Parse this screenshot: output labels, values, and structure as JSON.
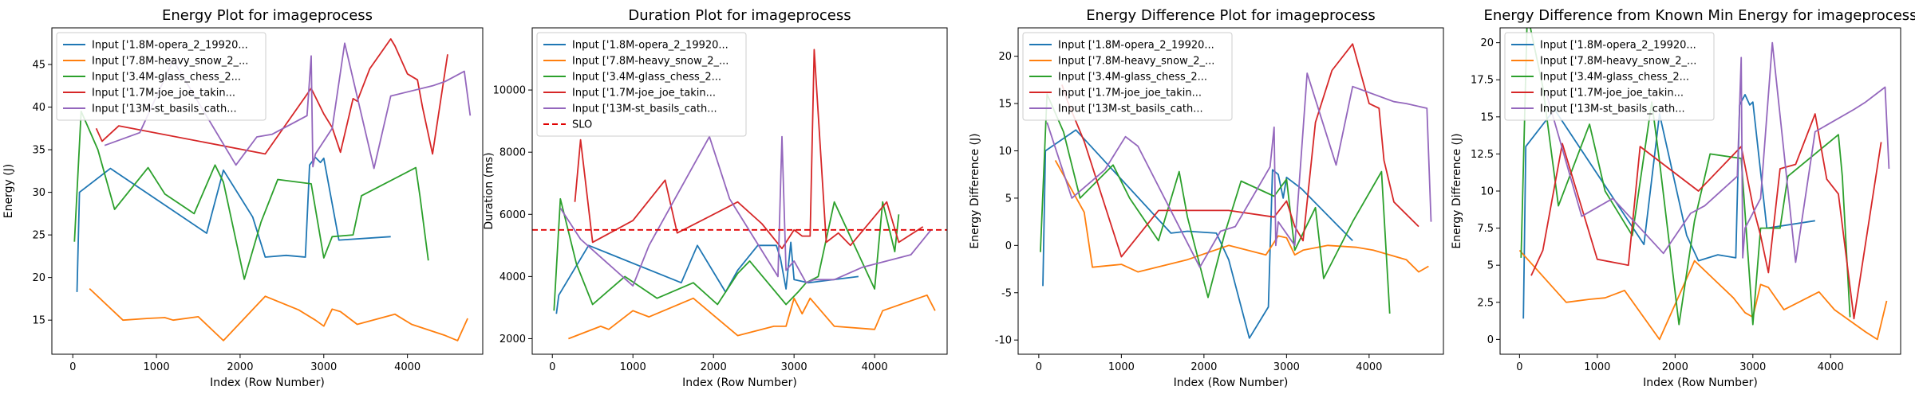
{
  "figure_title": "",
  "colors": [
    "#1f77b4",
    "#ff7f0e",
    "#2ca02c",
    "#d62728",
    "#9467bd"
  ],
  "chart_data": [
    {
      "type": "line",
      "title": "Energy Plot for imageprocess",
      "xlabel": "Index (Row Number)",
      "ylabel": "Energy (J)",
      "xlim": [
        -250,
        4900
      ],
      "ylim": [
        11,
        49.3
      ],
      "xticks": [
        0,
        1000,
        2000,
        3000,
        4000
      ],
      "yticks": [
        15,
        20,
        25,
        30,
        35,
        40,
        45
      ],
      "legend": "upper-left",
      "series": [
        {
          "name": "Input ['1.8M-opera_2_19920...",
          "x": [
            50,
            80,
            450,
            1600,
            1800,
            2150,
            2300,
            2550,
            2780,
            2830,
            2900,
            2960,
            3000,
            3180,
            3800
          ],
          "y": [
            18.3,
            30.0,
            32.8,
            25.2,
            32.6,
            27.1,
            22.4,
            22.6,
            22.4,
            33.2,
            34.1,
            33.5,
            34.0,
            24.4,
            24.8
          ]
        },
        {
          "name": "Input ['7.8M-heavy_snow_2_...",
          "x": [
            200,
            600,
            900,
            1100,
            1200,
            1500,
            1800,
            2300,
            2700,
            2900,
            3000,
            3100,
            3200,
            3400,
            3850,
            4050,
            4450,
            4600,
            4720
          ],
          "y": [
            18.7,
            15.0,
            15.2,
            15.3,
            15.0,
            15.4,
            12.6,
            17.8,
            16.2,
            15.0,
            14.3,
            16.3,
            16.0,
            14.5,
            15.7,
            14.5,
            13.2,
            12.6,
            15.2
          ]
        },
        {
          "name": "Input ['3.4M-glass_chess_2...",
          "x": [
            20,
            100,
            300,
            500,
            900,
            1100,
            1450,
            1700,
            1800,
            2050,
            2250,
            2450,
            2850,
            3000,
            3100,
            3350,
            3450,
            4100,
            4150,
            4250
          ],
          "y": [
            24.2,
            39.5,
            35.0,
            28.0,
            32.9,
            29.8,
            27.5,
            33.2,
            31.2,
            19.8,
            26.5,
            31.5,
            31.0,
            22.3,
            24.8,
            25.0,
            29.6,
            32.9,
            29.5,
            22.0
          ]
        },
        {
          "name": "Input ['1.7M-joe_joe_takin...",
          "x": [
            280,
            350,
            550,
            2300,
            2850,
            3000,
            3100,
            3200,
            3350,
            3400,
            3550,
            3800,
            3850,
            4000,
            4120,
            4180,
            4300,
            4480
          ],
          "y": [
            37.5,
            36.0,
            37.8,
            34.5,
            42.2,
            39.2,
            37.6,
            34.7,
            41.0,
            40.7,
            44.5,
            48.0,
            47.2,
            43.9,
            43.2,
            40.0,
            34.5,
            46.2
          ]
        },
        {
          "name": "Input ['13M-st_basils_cath...",
          "x": [
            380,
            800,
            1200,
            1950,
            2200,
            2380,
            2800,
            2850,
            2870,
            2900,
            3100,
            3250,
            3600,
            3800,
            4300,
            4450,
            4680,
            4750
          ],
          "y": [
            35.5,
            37.0,
            45.5,
            33.2,
            36.5,
            36.8,
            39.0,
            46.0,
            33.0,
            34.5,
            37.5,
            47.5,
            32.8,
            41.3,
            42.5,
            43.0,
            44.2,
            39.0
          ]
        }
      ]
    },
    {
      "type": "line",
      "title": "Duration Plot for imageprocess",
      "xlabel": "Index (Row Number)",
      "ylabel": "Duration (ms)",
      "xlim": [
        -250,
        4900
      ],
      "ylim": [
        1500,
        12000
      ],
      "xticks": [
        0,
        1000,
        2000,
        3000,
        4000
      ],
      "yticks": [
        2000,
        4000,
        6000,
        8000,
        10000
      ],
      "legend": "upper-left",
      "slo": {
        "label": "SLO",
        "value": 5500,
        "color": "#e00000"
      },
      "series": [
        {
          "name": "Input ['1.8M-opera_2_19920...",
          "x": [
            50,
            80,
            450,
            1600,
            1800,
            2150,
            2300,
            2550,
            2780,
            2830,
            2900,
            2960,
            3000,
            3180,
            3800
          ],
          "y": [
            2800,
            3400,
            5000,
            3800,
            5000,
            3500,
            4200,
            5000,
            5000,
            4600,
            3600,
            5100,
            3900,
            3800,
            4000
          ]
        },
        {
          "name": "Input ['7.8M-heavy_snow_2_...",
          "x": [
            200,
            600,
            700,
            1000,
            1200,
            1750,
            2300,
            2750,
            2900,
            3000,
            3100,
            3200,
            3500,
            4000,
            4100,
            4650,
            4750
          ],
          "y": [
            2000,
            2400,
            2300,
            2900,
            2700,
            3300,
            2100,
            2400,
            2400,
            3300,
            2800,
            3300,
            2400,
            2300,
            2900,
            3400,
            2900
          ]
        },
        {
          "name": "Input ['3.4M-glass_chess_2...",
          "x": [
            20,
            100,
            300,
            500,
            900,
            1300,
            1750,
            2050,
            2300,
            2450,
            2900,
            3050,
            3150,
            3300,
            3500,
            4000,
            4100,
            4250,
            4300
          ],
          "y": [
            2900,
            6500,
            4400,
            3100,
            4000,
            3300,
            3800,
            3100,
            4100,
            4500,
            3100,
            3500,
            3800,
            4000,
            6400,
            3600,
            6400,
            4800,
            6000
          ]
        },
        {
          "name": "Input ['1.7M-joe_joe_takin...",
          "x": [
            280,
            350,
            500,
            1000,
            1400,
            1550,
            2300,
            2600,
            2850,
            3000,
            3100,
            3200,
            3250,
            3400,
            3550,
            3700,
            4150,
            4300,
            4600
          ],
          "y": [
            6400,
            8400,
            5100,
            5800,
            7100,
            5400,
            6400,
            5700,
            4900,
            5500,
            5300,
            5300,
            11300,
            5100,
            5400,
            5000,
            6400,
            5100,
            5600
          ]
        },
        {
          "name": "Input ['13M-st_basils_cath...",
          "x": [
            100,
            350,
            1000,
            1200,
            1950,
            2200,
            2800,
            2850,
            2900,
            3000,
            3150,
            3250,
            3500,
            3850,
            4450,
            4700
          ],
          "y": [
            6200,
            5200,
            3700,
            5000,
            8500,
            6500,
            4000,
            8500,
            4200,
            4500,
            3800,
            3900,
            3900,
            4300,
            4700,
            5500
          ]
        }
      ]
    },
    {
      "type": "line",
      "title": "Energy Difference Plot for imageprocess",
      "xlabel": "Index (Row Number)",
      "ylabel": "Energy Difference (J)",
      "xlim": [
        -250,
        4900
      ],
      "ylim": [
        -11.5,
        23
      ],
      "xticks": [
        0,
        1000,
        2000,
        3000,
        4000
      ],
      "yticks": [
        -10,
        -5,
        0,
        5,
        10,
        15,
        20
      ],
      "legend": "upper-left",
      "series": [
        {
          "name": "Input ['1.8M-opera_2_19920...",
          "x": [
            50,
            80,
            450,
            1600,
            1800,
            2150,
            2300,
            2550,
            2780,
            2830,
            2900,
            2960,
            3000,
            3180,
            3800
          ],
          "y": [
            -4.3,
            10.0,
            12.2,
            1.3,
            1.5,
            1.3,
            -1.5,
            -9.8,
            -6.5,
            8.0,
            7.5,
            5.0,
            7.2,
            6.0,
            0.5
          ]
        },
        {
          "name": "Input ['7.8M-heavy_snow_2_...",
          "x": [
            200,
            550,
            650,
            1000,
            1200,
            1800,
            2300,
            2750,
            2900,
            3000,
            3100,
            3200,
            3500,
            3850,
            4050,
            4450,
            4600,
            4720
          ],
          "y": [
            9.0,
            3.5,
            -2.3,
            -2.0,
            -2.8,
            -1.5,
            0.0,
            -1.0,
            1.0,
            0.8,
            -1.0,
            -0.5,
            0.0,
            -0.2,
            -0.5,
            -1.5,
            -2.8,
            -2.2
          ]
        },
        {
          "name": "Input ['3.4M-glass_chess_2...",
          "x": [
            20,
            100,
            300,
            500,
            900,
            1100,
            1450,
            1700,
            1800,
            2050,
            2250,
            2450,
            2850,
            3000,
            3100,
            3350,
            3450,
            3800,
            4150,
            4250
          ],
          "y": [
            -0.7,
            16.0,
            12.0,
            5.0,
            8.5,
            5.0,
            0.5,
            7.8,
            3.0,
            -5.5,
            1.2,
            6.8,
            5.2,
            7.0,
            -0.5,
            4.0,
            -3.5,
            2.5,
            7.8,
            -7.2
          ]
        },
        {
          "name": "Input ['1.7M-joe_joe_takin...",
          "x": [
            280,
            350,
            550,
            1000,
            1450,
            2300,
            2850,
            3000,
            3100,
            3200,
            3350,
            3550,
            3800,
            4000,
            4120,
            4180,
            4300,
            4600
          ],
          "y": [
            17.0,
            15.2,
            11.0,
            -1.2,
            3.7,
            3.7,
            3.0,
            4.7,
            2.0,
            0.5,
            13.0,
            18.5,
            21.3,
            15.0,
            14.5,
            9.0,
            4.6,
            2.0
          ]
        },
        {
          "name": "Input ['13M-st_basils_cath...",
          "x": [
            100,
            400,
            800,
            1050,
            1200,
            1950,
            2200,
            2380,
            2800,
            2850,
            2870,
            2900,
            3100,
            3250,
            3600,
            3800,
            4300,
            4450,
            4700,
            4750
          ],
          "y": [
            13.0,
            5.0,
            8.0,
            11.5,
            10.5,
            -2.3,
            1.5,
            2.0,
            8.3,
            12.5,
            0.0,
            2.5,
            0.0,
            18.2,
            8.5,
            16.8,
            15.2,
            15.0,
            14.5,
            2.5
          ]
        }
      ]
    },
    {
      "type": "line",
      "title": "Energy Difference from Known Min Energy for imageprocess",
      "xlabel": "Index (Row Number)",
      "ylabel": "Energy Difference (J)",
      "xlim": [
        -250,
        4900
      ],
      "ylim": [
        -1,
        21
      ],
      "xticks": [
        0,
        1000,
        2000,
        3000,
        4000
      ],
      "yticks": [
        0.0,
        2.5,
        5.0,
        7.5,
        10.0,
        12.5,
        15.0,
        17.5,
        20.0
      ],
      "legend": "upper-left",
      "series": [
        {
          "name": "Input ['1.8M-opera_2_19920...",
          "x": [
            50,
            80,
            450,
            1600,
            1800,
            2150,
            2300,
            2550,
            2780,
            2830,
            2900,
            2960,
            3000,
            3180,
            3800
          ],
          "y": [
            1.4,
            13.0,
            15.5,
            6.4,
            15.2,
            7.0,
            5.3,
            5.7,
            5.5,
            15.8,
            16.5,
            15.8,
            16.0,
            7.5,
            8.0
          ]
        },
        {
          "name": "Input ['7.8M-heavy_snow_2_...",
          "x": [
            0,
            600,
            900,
            1100,
            1350,
            1800,
            2250,
            2750,
            2900,
            3000,
            3100,
            3200,
            3400,
            3850,
            4050,
            4450,
            4600,
            4720
          ],
          "y": [
            6.0,
            2.5,
            2.7,
            2.8,
            3.3,
            0.0,
            5.3,
            2.8,
            1.8,
            1.5,
            3.7,
            3.5,
            2.0,
            3.2,
            2.0,
            0.5,
            0.0,
            2.6
          ]
        },
        {
          "name": "Input ['3.4M-glass_chess_2...",
          "x": [
            20,
            100,
            300,
            500,
            900,
            1100,
            1450,
            1700,
            1800,
            2050,
            2250,
            2450,
            2850,
            3000,
            3100,
            3350,
            3450,
            4100,
            4150,
            4250
          ],
          "y": [
            5.5,
            22.0,
            17.0,
            9.0,
            14.5,
            10.0,
            7.0,
            16.0,
            12.0,
            1.0,
            8.0,
            12.5,
            12.2,
            1.0,
            7.5,
            7.5,
            11.0,
            13.8,
            11.0,
            1.5
          ]
        },
        {
          "name": "Input ['1.7M-joe_joe_takin...",
          "x": [
            150,
            300,
            550,
            1000,
            1400,
            1550,
            2300,
            2850,
            3000,
            3100,
            3200,
            3350,
            3550,
            3800,
            3950,
            4100,
            4300,
            4650
          ],
          "y": [
            4.3,
            6.0,
            13.2,
            5.4,
            5.0,
            13.0,
            10.0,
            13.0,
            9.0,
            7.0,
            4.5,
            11.5,
            11.8,
            15.2,
            10.8,
            9.8,
            1.4,
            13.3
          ]
        },
        {
          "name": "Input ['13M-st_basils_cath...",
          "x": [
            350,
            800,
            1200,
            1850,
            2200,
            2380,
            2800,
            2850,
            2870,
            2900,
            3100,
            3250,
            3550,
            3800,
            4300,
            4450,
            4700,
            4750
          ],
          "y": [
            16.5,
            8.3,
            9.5,
            5.8,
            8.5,
            9.0,
            11.0,
            19.0,
            5.5,
            7.5,
            9.5,
            20.0,
            5.2,
            14.0,
            15.5,
            16.0,
            17.0,
            11.5
          ]
        }
      ]
    }
  ]
}
